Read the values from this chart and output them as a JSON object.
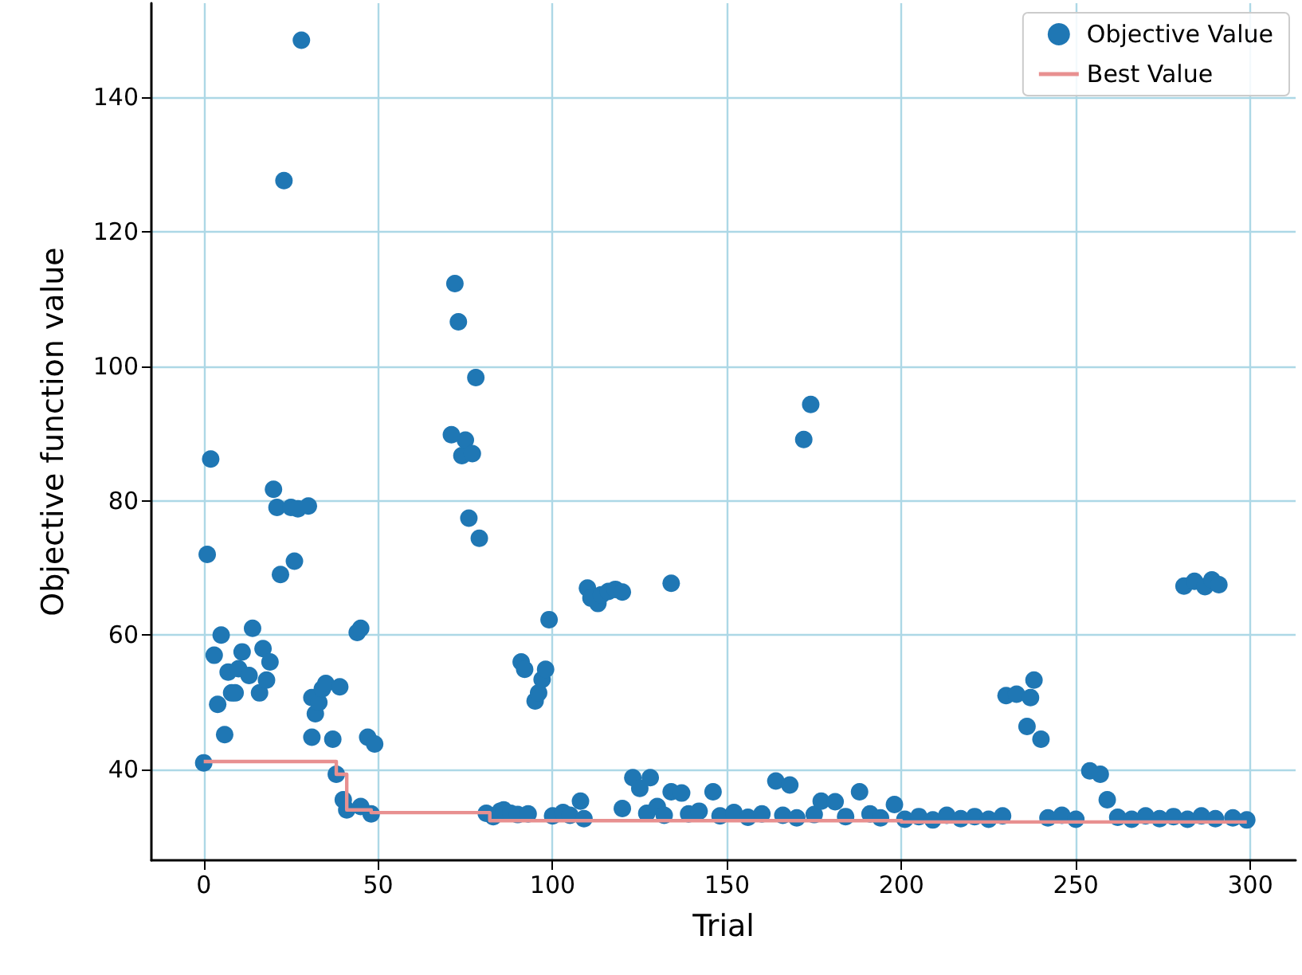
{
  "chart_data": {
    "type": "scatter",
    "xlabel": "Trial",
    "ylabel": "Objective function value",
    "xlim": [
      -15,
      313
    ],
    "ylim": [
      26.5,
      154
    ],
    "xticks": [
      0,
      50,
      100,
      150,
      200,
      250,
      300
    ],
    "yticks": [
      40,
      60,
      80,
      100,
      120,
      140
    ],
    "grid": true,
    "legend": "top right",
    "series": [
      {
        "name": "Objective Value",
        "marker": "circle",
        "color": "#1f77b4",
        "x": [
          0,
          1,
          2,
          3,
          4,
          5,
          6,
          7,
          8,
          9,
          10,
          11,
          13,
          14,
          16,
          17,
          18,
          19,
          20,
          21,
          22,
          23,
          25,
          26,
          27,
          28,
          30,
          31,
          32,
          31,
          33,
          34,
          35,
          37,
          38,
          39,
          40,
          41,
          44,
          45,
          45,
          47,
          48,
          49,
          71,
          72,
          73,
          74,
          75,
          76,
          77,
          78,
          79,
          81,
          83,
          85,
          86,
          88,
          90,
          91,
          92,
          93,
          95,
          96,
          97,
          98,
          99,
          100,
          103,
          105,
          108,
          109,
          110,
          111,
          113,
          114,
          116,
          118,
          120,
          120,
          123,
          125,
          127,
          128,
          130,
          132,
          134,
          134,
          137,
          139,
          142,
          146,
          148,
          152,
          156,
          160,
          164,
          166,
          168,
          170,
          172,
          174,
          175,
          177,
          181,
          184,
          188,
          191,
          194,
          198,
          201,
          205,
          209,
          213,
          217,
          221,
          225,
          229,
          230,
          233,
          236,
          237,
          238,
          240,
          242,
          246,
          250,
          254,
          257,
          259,
          262,
          266,
          270,
          274,
          278,
          281,
          282,
          284,
          286,
          287,
          289,
          290,
          291,
          295,
          299
        ],
        "values": [
          41,
          72,
          86.2,
          57,
          49.7,
          60,
          45.2,
          54.5,
          51.4,
          51.4,
          55,
          57.5,
          54,
          61,
          51.4,
          58,
          53.3,
          56,
          81.7,
          79,
          69,
          127.6,
          79,
          71,
          78.8,
          148.5,
          79.2,
          50.7,
          48.3,
          44.8,
          50,
          52,
          52.8,
          44.5,
          39.3,
          52.3,
          35.5,
          34,
          60.4,
          61,
          34.5,
          44.8,
          33.4,
          43.8,
          89.8,
          112.3,
          106.6,
          86.7,
          89,
          77.4,
          87,
          98.3,
          74.4,
          33.5,
          33,
          33.8,
          34,
          33.5,
          33.3,
          56,
          54.9,
          33.4,
          50.2,
          51.4,
          53.4,
          54.9,
          62.3,
          33.1,
          33.6,
          33.2,
          35.3,
          32.7,
          67,
          65.5,
          64.7,
          66,
          66.5,
          66.8,
          66.4,
          34.2,
          38.8,
          37.2,
          33.5,
          38.8,
          34.5,
          33.2,
          67.7,
          36.7,
          36.5,
          33.4,
          33.8,
          36.7,
          33.1,
          33.6,
          32.9,
          33.4,
          38.3,
          33.2,
          37.7,
          32.8,
          89.1,
          94.3,
          33.3,
          35.3,
          35.2,
          33,
          36.7,
          33.4,
          32.8,
          34.8,
          32.6,
          33,
          32.5,
          33.2,
          32.7,
          33,
          32.6,
          33.1,
          51,
          51.2,
          46.4,
          50.7,
          53.3,
          44.5,
          32.8,
          33.2,
          32.6,
          39.8,
          39.3,
          35.5,
          32.9,
          32.6,
          33.1,
          32.7,
          33,
          67.3,
          32.6,
          68,
          33.1,
          67.2,
          68.2,
          32.7,
          67.5,
          32.8,
          32.5
        ]
      },
      {
        "name": "Best Value",
        "type": "step",
        "color": "#e89090",
        "line_style": "solid",
        "x": [
          0,
          38,
          41,
          48,
          82,
          200,
          299
        ],
        "values": [
          41.2,
          39.3,
          34.0,
          33.6,
          32.4,
          32.2,
          32.2
        ]
      }
    ]
  }
}
